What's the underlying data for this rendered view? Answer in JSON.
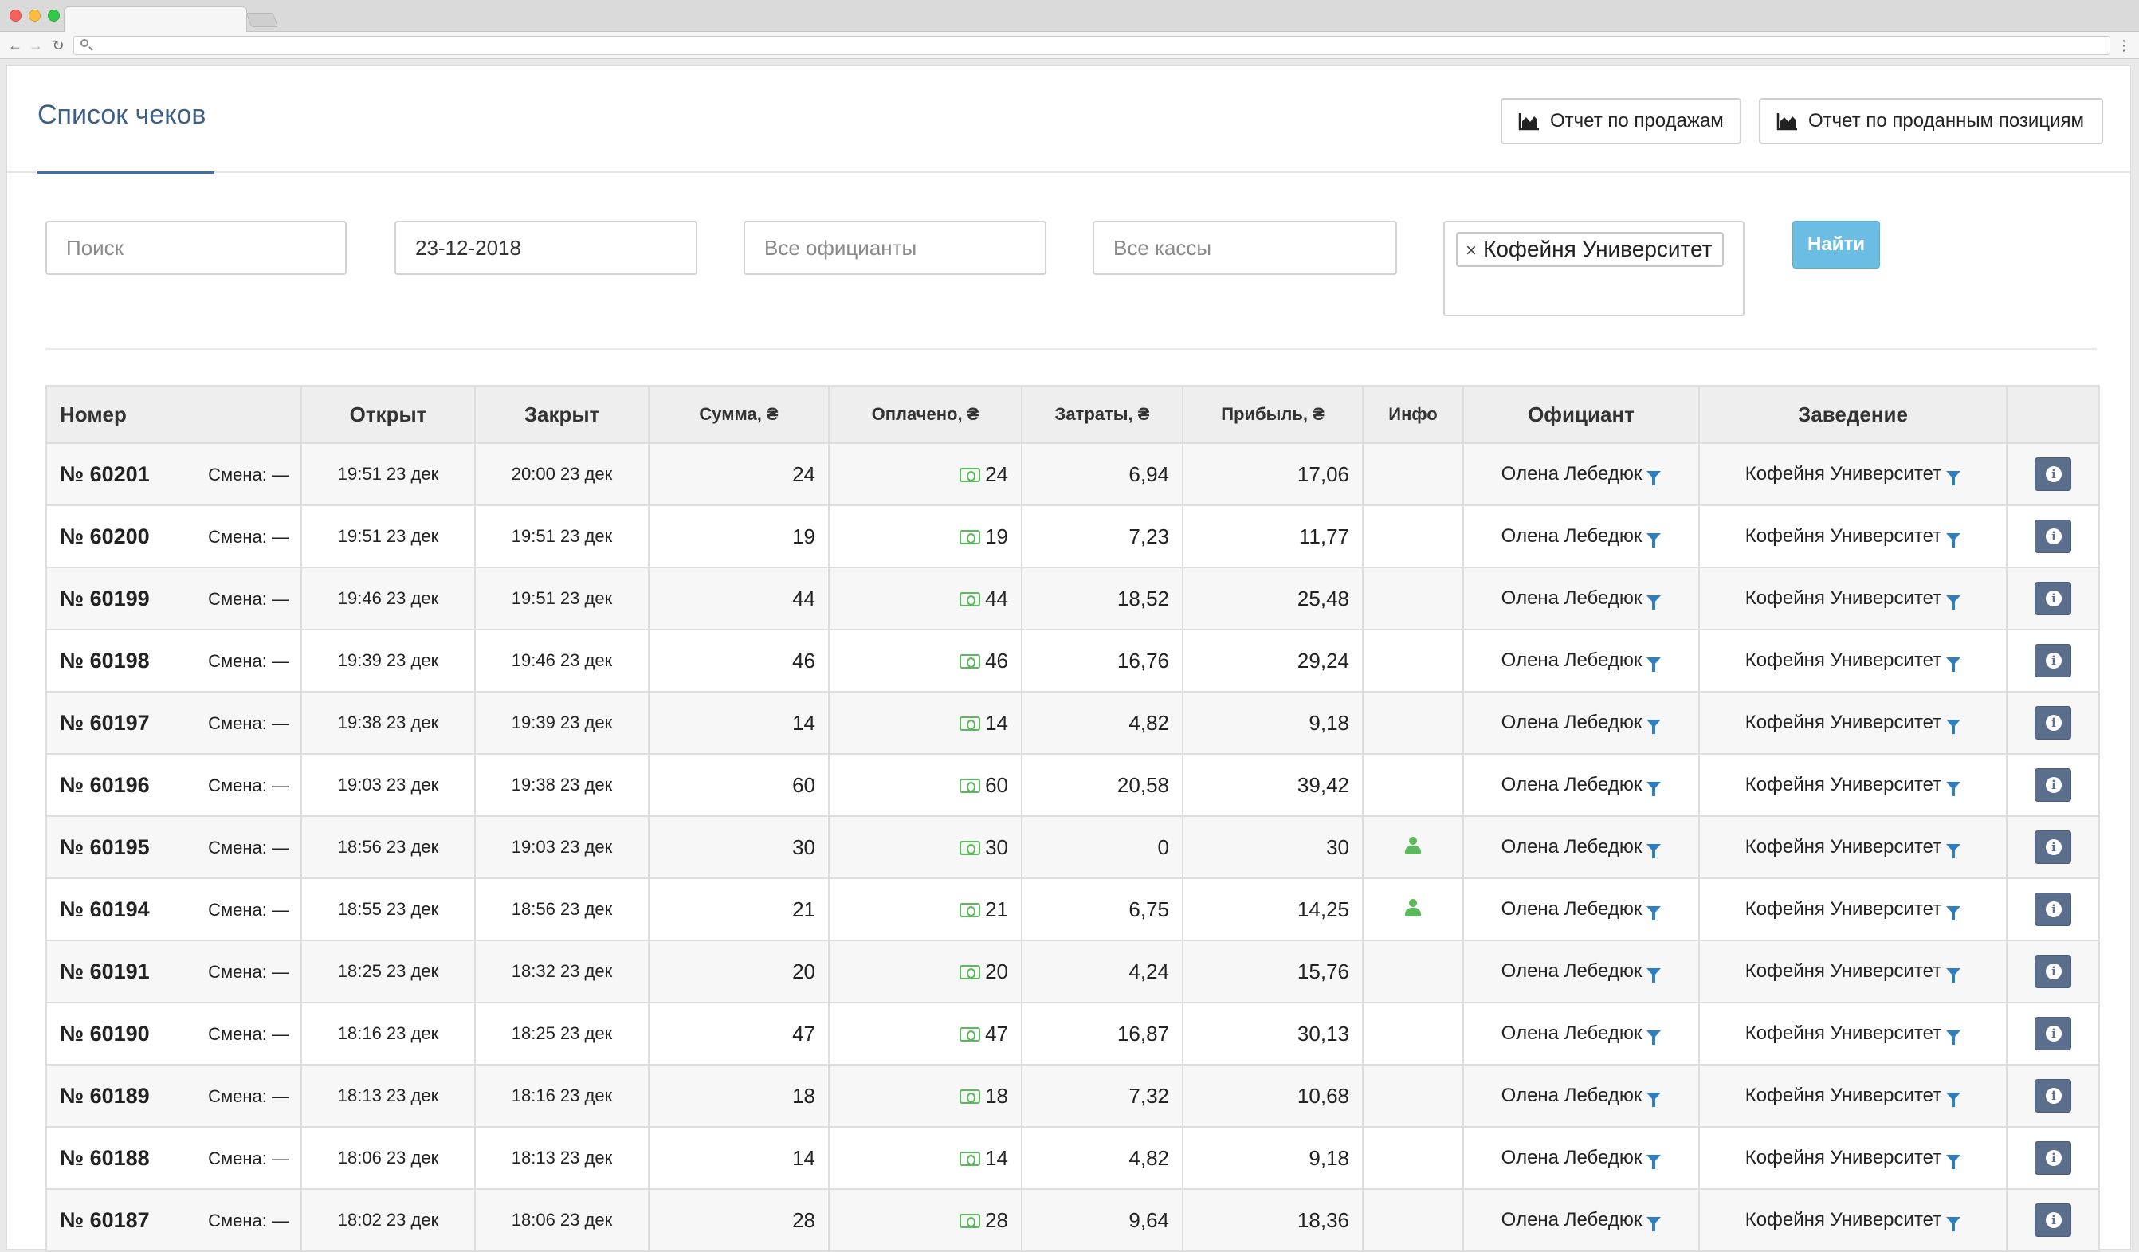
{
  "header": {
    "title": "Список чеков",
    "sales_report_label": "Отчет по продажам",
    "positions_report_label": "Отчет по проданным позициям"
  },
  "filters": {
    "search_placeholder": "Поиск",
    "date_value": "23-12-2018",
    "waiters_placeholder": "Все официанты",
    "cash_placeholder": "Все кассы",
    "place_chip": "Кофейня Университет",
    "find_label": "Найти"
  },
  "table": {
    "columns": [
      "Номер",
      "Открыт",
      "Закрыт",
      "Сумма, ₴",
      "Оплачено, ₴",
      "Затраты, ₴",
      "Прибыль, ₴",
      "Инфо",
      "Официант",
      "Заведение"
    ],
    "rows": [
      {
        "num": "№ 60201",
        "shift": "Смена: —",
        "opened": "19:51 23 дек",
        "closed": "20:00 23 дек",
        "sum": "24",
        "paid": "24",
        "cost": "6,94",
        "profit": "17,06",
        "info": false,
        "waiter": "Олена Лебедюк",
        "place": "Кофейня Университет"
      },
      {
        "num": "№ 60200",
        "shift": "Смена: —",
        "opened": "19:51 23 дек",
        "closed": "19:51 23 дек",
        "sum": "19",
        "paid": "19",
        "cost": "7,23",
        "profit": "11,77",
        "info": false,
        "waiter": "Олена Лебедюк",
        "place": "Кофейня Университет"
      },
      {
        "num": "№ 60199",
        "shift": "Смена: —",
        "opened": "19:46 23 дек",
        "closed": "19:51 23 дек",
        "sum": "44",
        "paid": "44",
        "cost": "18,52",
        "profit": "25,48",
        "info": false,
        "waiter": "Олена Лебедюк",
        "place": "Кофейня Университет"
      },
      {
        "num": "№ 60198",
        "shift": "Смена: —",
        "opened": "19:39 23 дек",
        "closed": "19:46 23 дек",
        "sum": "46",
        "paid": "46",
        "cost": "16,76",
        "profit": "29,24",
        "info": false,
        "waiter": "Олена Лебедюк",
        "place": "Кофейня Университет"
      },
      {
        "num": "№ 60197",
        "shift": "Смена: —",
        "opened": "19:38 23 дек",
        "closed": "19:39 23 дек",
        "sum": "14",
        "paid": "14",
        "cost": "4,82",
        "profit": "9,18",
        "info": false,
        "waiter": "Олена Лебедюк",
        "place": "Кофейня Университет"
      },
      {
        "num": "№ 60196",
        "shift": "Смена: —",
        "opened": "19:03 23 дек",
        "closed": "19:38 23 дек",
        "sum": "60",
        "paid": "60",
        "cost": "20,58",
        "profit": "39,42",
        "info": false,
        "waiter": "Олена Лебедюк",
        "place": "Кофейня Университет"
      },
      {
        "num": "№ 60195",
        "shift": "Смена: —",
        "opened": "18:56 23 дек",
        "closed": "19:03 23 дек",
        "sum": "30",
        "paid": "30",
        "cost": "0",
        "profit": "30",
        "info": true,
        "waiter": "Олена Лебедюк",
        "place": "Кофейня Университет"
      },
      {
        "num": "№ 60194",
        "shift": "Смена: —",
        "opened": "18:55 23 дек",
        "closed": "18:56 23 дек",
        "sum": "21",
        "paid": "21",
        "cost": "6,75",
        "profit": "14,25",
        "info": true,
        "waiter": "Олена Лебедюк",
        "place": "Кофейня Университет"
      },
      {
        "num": "№ 60191",
        "shift": "Смена: —",
        "opened": "18:25 23 дек",
        "closed": "18:32 23 дек",
        "sum": "20",
        "paid": "20",
        "cost": "4,24",
        "profit": "15,76",
        "info": false,
        "waiter": "Олена Лебедюк",
        "place": "Кофейня Университет"
      },
      {
        "num": "№ 60190",
        "shift": "Смена: —",
        "opened": "18:16 23 дек",
        "closed": "18:25 23 дек",
        "sum": "47",
        "paid": "47",
        "cost": "16,87",
        "profit": "30,13",
        "info": false,
        "waiter": "Олена Лебедюк",
        "place": "Кофейня Университет"
      },
      {
        "num": "№ 60189",
        "shift": "Смена: —",
        "opened": "18:13 23 дек",
        "closed": "18:16 23 дек",
        "sum": "18",
        "paid": "18",
        "cost": "7,32",
        "profit": "10,68",
        "info": false,
        "waiter": "Олена Лебедюк",
        "place": "Кофейня Университет"
      },
      {
        "num": "№ 60188",
        "shift": "Смена: —",
        "opened": "18:06 23 дек",
        "closed": "18:13 23 дек",
        "sum": "14",
        "paid": "14",
        "cost": "4,82",
        "profit": "9,18",
        "info": false,
        "waiter": "Олена Лебедюк",
        "place": "Кофейня Университет"
      },
      {
        "num": "№ 60187",
        "shift": "Смена: —",
        "opened": "18:02 23 дек",
        "closed": "18:06 23 дек",
        "sum": "28",
        "paid": "28",
        "cost": "9,64",
        "profit": "18,36",
        "info": false,
        "waiter": "Олена Лебедюк",
        "place": "Кофейня Университет"
      }
    ]
  },
  "icons": {
    "report": "area-chart-icon",
    "paid": "cash-icon",
    "info": "person-icon",
    "filter": "filter-icon",
    "details": "info-icon"
  },
  "colors": {
    "title": "#3e5f84",
    "find_button": "#6bbde3",
    "cash_green": "#5cb85c",
    "filter_blue": "#2d7fc1",
    "info_button": "#5b6f8c"
  }
}
